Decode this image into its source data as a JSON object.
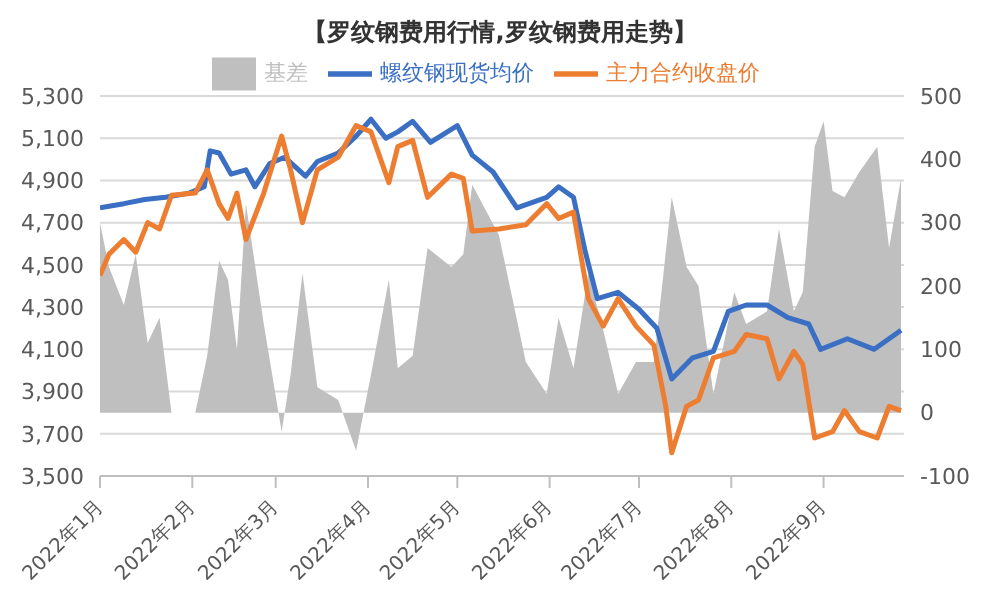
{
  "chart_data": {
    "type": "line",
    "title": "【罗纹钢费用行情,罗纹钢费用走势】",
    "legend": "top",
    "grid": "y",
    "marker": "none",
    "line_style": "solid",
    "xlim": [
      "2022-01-01",
      "2022-09-28"
    ],
    "xticks": [
      {
        "value": "2022-01-01",
        "label": "2022年1月"
      },
      {
        "value": "2022-02-01",
        "label": "2022年2月"
      },
      {
        "value": "2022-03-01",
        "label": "2022年3月"
      },
      {
        "value": "2022-04-01",
        "label": "2022年4月"
      },
      {
        "value": "2022-05-01",
        "label": "2022年5月"
      },
      {
        "value": "2022-06-01",
        "label": "2022年6月"
      },
      {
        "value": "2022-07-01",
        "label": "2022年7月"
      },
      {
        "value": "2022-08-01",
        "label": "2022年8月"
      },
      {
        "value": "2022-09-01",
        "label": "2022年9月"
      }
    ],
    "ylim": [
      3500,
      5300
    ],
    "yticks": [
      {
        "value": 3500,
        "label": "3,500"
      },
      {
        "value": 3700,
        "label": "3,700"
      },
      {
        "value": 3900,
        "label": "3,900"
      },
      {
        "value": 4100,
        "label": "4,100"
      },
      {
        "value": 4300,
        "label": "4,300"
      },
      {
        "value": 4500,
        "label": "4,500"
      },
      {
        "value": 4700,
        "label": "4,700"
      },
      {
        "value": 4900,
        "label": "4,900"
      },
      {
        "value": 5100,
        "label": "5,100"
      },
      {
        "value": 5300,
        "label": "5,300"
      }
    ],
    "y2lim": [
      -100,
      500
    ],
    "y2ticks": [
      -100,
      0,
      100,
      200,
      300,
      400,
      500
    ],
    "series": [
      {
        "name": "基差",
        "type": "area",
        "axis": "y2",
        "color": "#bfbfbf",
        "x": [
          "2022-01-01",
          "2022-01-04",
          "2022-01-09",
          "2022-01-13",
          "2022-01-17",
          "2022-01-21",
          "2022-01-25",
          "2022-02-02",
          "2022-02-06",
          "2022-02-10",
          "2022-02-13",
          "2022-02-16",
          "2022-02-19",
          "2022-02-25",
          "2022-03-03",
          "2022-03-06",
          "2022-03-10",
          "2022-03-15",
          "2022-03-22",
          "2022-03-28",
          "2022-04-02",
          "2022-04-08",
          "2022-04-11",
          "2022-04-16",
          "2022-04-21",
          "2022-04-29",
          "2022-05-03",
          "2022-05-06",
          "2022-05-15",
          "2022-05-24",
          "2022-05-31",
          "2022-06-04",
          "2022-06-09",
          "2022-06-14",
          "2022-06-19",
          "2022-06-24",
          "2022-06-30",
          "2022-07-06",
          "2022-07-12",
          "2022-07-17",
          "2022-07-21",
          "2022-07-26",
          "2022-08-02",
          "2022-08-06",
          "2022-08-13",
          "2022-08-17",
          "2022-08-22",
          "2022-08-25",
          "2022-08-29",
          "2022-09-01",
          "2022-09-04",
          "2022-09-08",
          "2022-09-13",
          "2022-09-19",
          "2022-09-23",
          "2022-09-27"
        ],
        "values": [
          300,
          230,
          170,
          250,
          110,
          150,
          0,
          0,
          90,
          240,
          210,
          100,
          330,
          140,
          -30,
          60,
          220,
          40,
          20,
          -60,
          60,
          210,
          70,
          90,
          260,
          230,
          250,
          360,
          280,
          80,
          30,
          150,
          70,
          220,
          130,
          30,
          80,
          80,
          340,
          230,
          200,
          30,
          190,
          140,
          160,
          290,
          160,
          190,
          420,
          460,
          350,
          340,
          380,
          420,
          260,
          370
        ]
      },
      {
        "name": "螺纹钢现货均价",
        "color": "#3a6fc4",
        "x": [
          "2022-01-01",
          "2022-01-09",
          "2022-01-16",
          "2022-01-23",
          "2022-01-31",
          "2022-02-05",
          "2022-02-07",
          "2022-02-10",
          "2022-02-14",
          "2022-02-19",
          "2022-02-22",
          "2022-02-27",
          "2022-03-04",
          "2022-03-11",
          "2022-03-15",
          "2022-03-22",
          "2022-03-28",
          "2022-04-02",
          "2022-04-07",
          "2022-04-11",
          "2022-04-16",
          "2022-04-22",
          "2022-05-01",
          "2022-05-06",
          "2022-05-13",
          "2022-05-21",
          "2022-05-31",
          "2022-06-04",
          "2022-06-09",
          "2022-06-13",
          "2022-06-17",
          "2022-06-24",
          "2022-07-01",
          "2022-07-07",
          "2022-07-12",
          "2022-07-19",
          "2022-07-26",
          "2022-07-31",
          "2022-08-06",
          "2022-08-13",
          "2022-08-20",
          "2022-08-27",
          "2022-08-31",
          "2022-09-09",
          "2022-09-18",
          "2022-09-27"
        ],
        "values": [
          4770,
          4790,
          4810,
          4820,
          4840,
          4870,
          5040,
          5030,
          4930,
          4950,
          4870,
          4980,
          5010,
          4920,
          4990,
          5030,
          5110,
          5190,
          5100,
          5130,
          5180,
          5080,
          5160,
          5020,
          4940,
          4770,
          4820,
          4870,
          4820,
          4560,
          4340,
          4370,
          4290,
          4200,
          3960,
          4060,
          4090,
          4280,
          4310,
          4310,
          4250,
          4220,
          4100,
          4150,
          4100,
          4190
        ]
      },
      {
        "name": "主力合约收盘价",
        "color": "#ed7d31",
        "x": [
          "2022-01-01",
          "2022-01-04",
          "2022-01-09",
          "2022-01-13",
          "2022-01-17",
          "2022-01-21",
          "2022-01-25",
          "2022-02-02",
          "2022-02-06",
          "2022-02-10",
          "2022-02-13",
          "2022-02-16",
          "2022-02-19",
          "2022-02-25",
          "2022-03-03",
          "2022-03-06",
          "2022-03-10",
          "2022-03-15",
          "2022-03-22",
          "2022-03-28",
          "2022-04-02",
          "2022-04-08",
          "2022-04-11",
          "2022-04-16",
          "2022-04-21",
          "2022-04-29",
          "2022-05-03",
          "2022-05-06",
          "2022-05-15",
          "2022-05-24",
          "2022-05-31",
          "2022-06-04",
          "2022-06-09",
          "2022-06-14",
          "2022-06-19",
          "2022-06-24",
          "2022-06-30",
          "2022-07-06",
          "2022-07-10",
          "2022-07-12",
          "2022-07-17",
          "2022-07-21",
          "2022-07-26",
          "2022-08-02",
          "2022-08-06",
          "2022-08-13",
          "2022-08-17",
          "2022-08-22",
          "2022-08-25",
          "2022-08-29",
          "2022-09-04",
          "2022-09-08",
          "2022-09-13",
          "2022-09-19",
          "2022-09-23",
          "2022-09-27"
        ],
        "values": [
          4450,
          4550,
          4620,
          4560,
          4700,
          4670,
          4830,
          4840,
          4950,
          4790,
          4720,
          4840,
          4620,
          4840,
          5110,
          4950,
          4700,
          4950,
          5010,
          5160,
          5130,
          4890,
          5060,
          5090,
          4820,
          4930,
          4910,
          4660,
          4670,
          4690,
          4790,
          4720,
          4750,
          4340,
          4210,
          4340,
          4210,
          4120,
          3830,
          3610,
          3830,
          3860,
          4060,
          4090,
          4170,
          4150,
          3960,
          4090,
          4030,
          3680,
          3710,
          3810,
          3710,
          3680,
          3830,
          3810
        ]
      }
    ]
  }
}
